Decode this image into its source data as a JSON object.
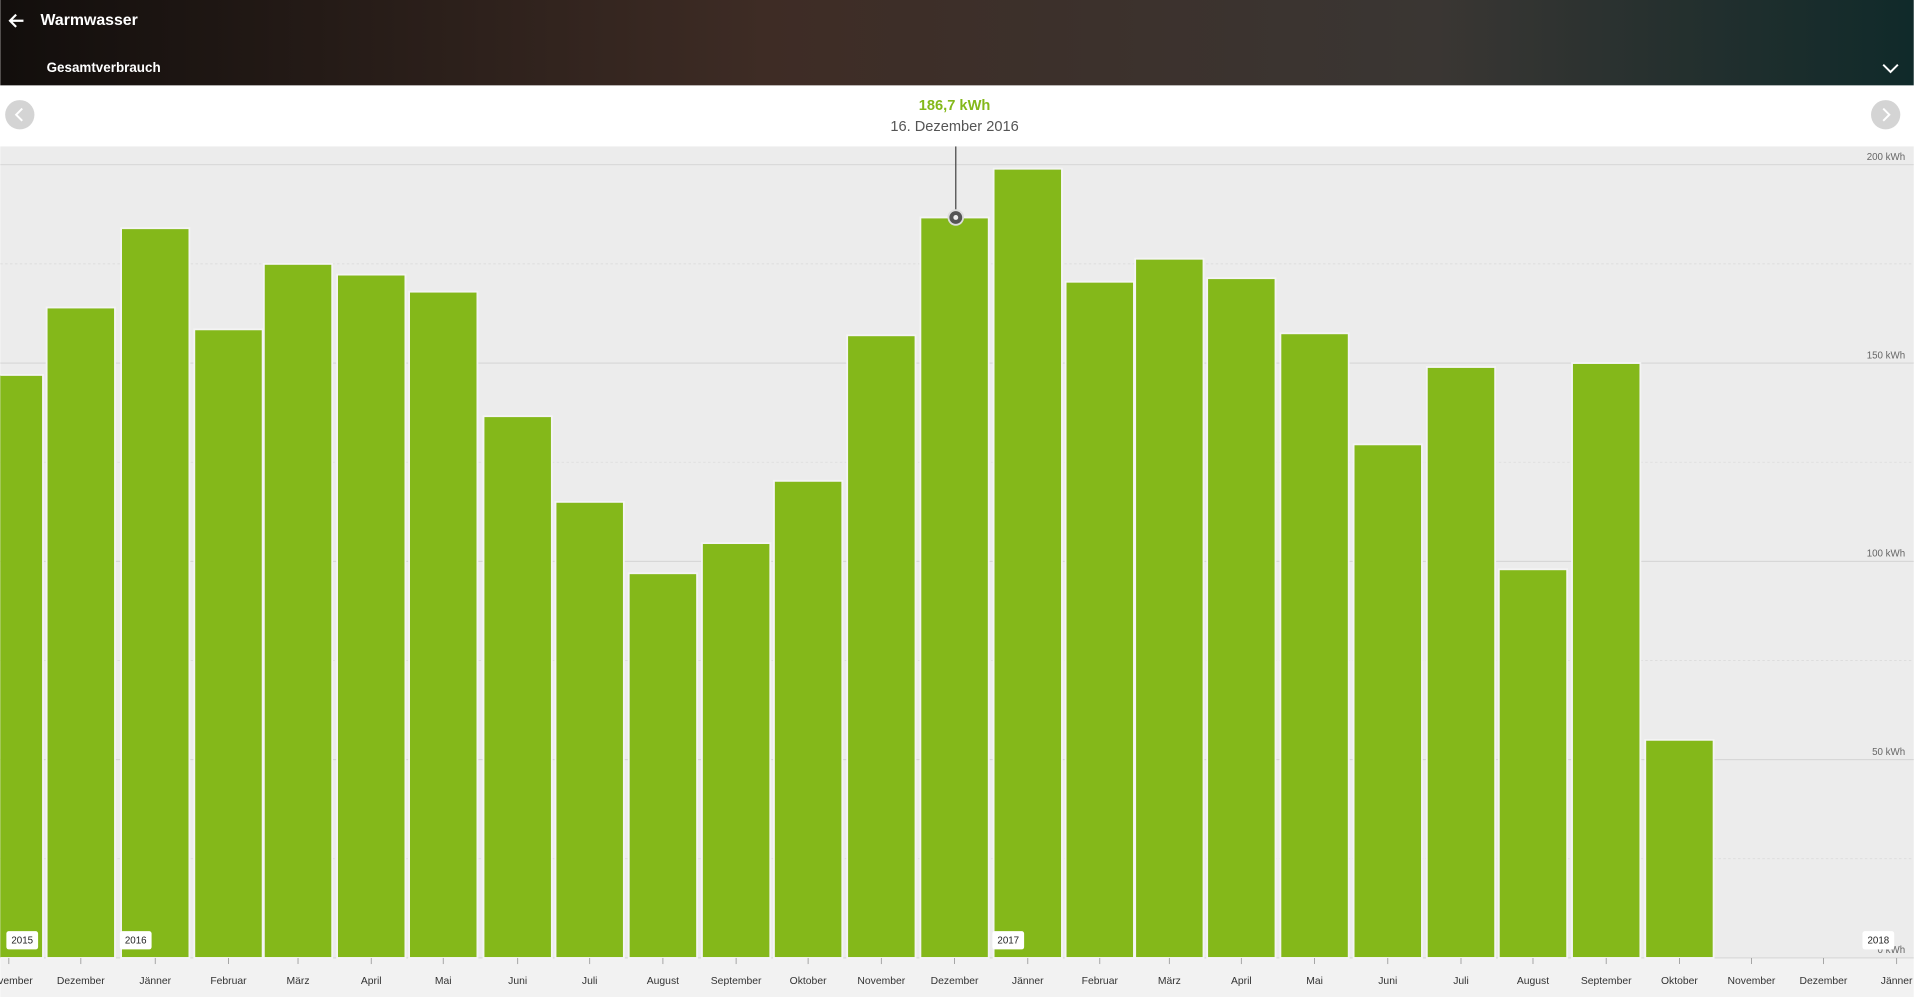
{
  "header": {
    "title": "Warmwasser",
    "subtitle": "Gesamtverbrauch"
  },
  "chart_data": {
    "type": "bar",
    "tooltip": {
      "label": "186,7 kWh",
      "date": "16. Dezember 2016"
    },
    "categories": [
      "November",
      "Dezember",
      "Jänner",
      "Februar",
      "März",
      "April",
      "Mai",
      "Juni",
      "Juli",
      "August",
      "September",
      "Oktober",
      "November",
      "Dezember",
      "Jänner",
      "Februar",
      "März",
      "April",
      "Mai",
      "Juni",
      "Juli",
      "August",
      "September",
      "Oktober",
      "November",
      "Dezember",
      "Jänner"
    ],
    "values": [
      147,
      164,
      184,
      158.5,
      175,
      172.3,
      168,
      136.6,
      115,
      97,
      104.6,
      120.3,
      157,
      186.7,
      199,
      170.5,
      176.3,
      171.4,
      157.5,
      129.5,
      149,
      98,
      150,
      55,
      null,
      null,
      null
    ],
    "year_labels": [
      "2015",
      "2016",
      "2017",
      "2018"
    ],
    "color": "#84b81a",
    "ylim": [
      0,
      204
    ],
    "yticks": [
      {
        "value": 0,
        "label": "0 kWh"
      },
      {
        "value": 50,
        "label": "50  kWh"
      },
      {
        "value": 100,
        "label": "100  kWh"
      },
      {
        "value": 150,
        "label": "150  kWh"
      },
      {
        "value": 200,
        "label": "200  kWh"
      }
    ],
    "minor_yticks": [
      25,
      75,
      125,
      175
    ],
    "grid": true
  }
}
